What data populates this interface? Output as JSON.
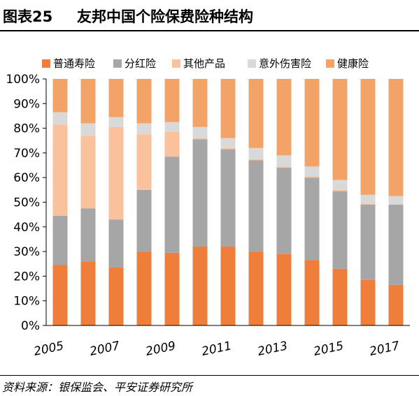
{
  "figure": {
    "number": "图表25",
    "title": "友邦中国个险保费险种结构",
    "source": "资料来源：银保监会、平安证券研究所"
  },
  "chart_data": {
    "type": "bar",
    "stacked": true,
    "categories": [
      "2005",
      "2006",
      "2007",
      "2008",
      "2009",
      "2010",
      "2011",
      "2012",
      "2013",
      "2014",
      "2015",
      "2016",
      "2017"
    ],
    "x_tick_labels": [
      "2005",
      "2007",
      "2009",
      "2011",
      "2013",
      "2015",
      "2017"
    ],
    "y_tick_labels": [
      "0%",
      "10%",
      "20%",
      "30%",
      "40%",
      "50%",
      "60%",
      "70%",
      "80%",
      "90%",
      "100%"
    ],
    "ylim": [
      0,
      100
    ],
    "grid": false,
    "legend_position": "top",
    "series": [
      {
        "name": "普通寿险",
        "color": "#ee7e3a",
        "values": [
          24.5,
          26,
          23.5,
          30,
          29.5,
          32,
          32,
          30,
          29,
          26.5,
          23,
          18.5,
          16.5
        ]
      },
      {
        "name": "分红险",
        "color": "#a6a6a6",
        "values": [
          20,
          21.5,
          19.5,
          25,
          39,
          43.5,
          39.5,
          37,
          35,
          33.5,
          31.5,
          30.5,
          32.5
        ]
      },
      {
        "name": "其他产品",
        "color": "#f9c29d",
        "values": [
          37,
          29.5,
          37.5,
          22.5,
          10,
          0.5,
          0.5,
          0.5,
          0.5,
          0.5,
          0.5,
          0.5,
          0
        ]
      },
      {
        "name": "意外伤害险",
        "color": "#d9d9d9",
        "values": [
          5,
          5,
          4,
          4.5,
          4,
          4.5,
          4,
          4.5,
          4.5,
          4,
          4,
          3.5,
          3.5
        ]
      },
      {
        "name": "健康险",
        "color": "#f3a367",
        "values": [
          13.5,
          18,
          15.5,
          18,
          17.5,
          19.5,
          24,
          28,
          31,
          35.5,
          41,
          47,
          47.5
        ]
      }
    ]
  }
}
